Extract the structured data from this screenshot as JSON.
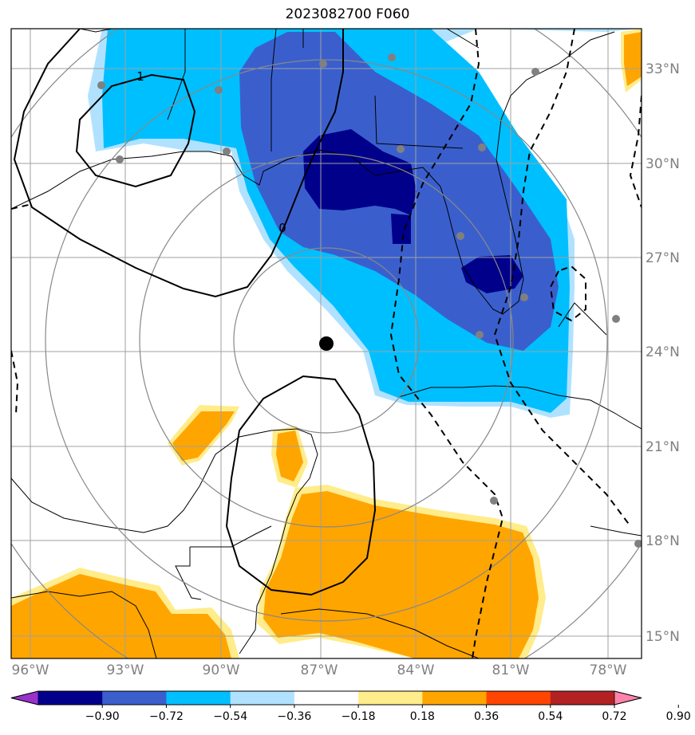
{
  "title": "2023082700 F060",
  "map": {
    "lon_ticks": [
      "96°W",
      "93°W",
      "90°W",
      "87°W",
      "84°W",
      "81°W",
      "78°W"
    ],
    "lat_ticks": [
      "33°N",
      "30°N",
      "27°N",
      "24°N",
      "21°N",
      "18°N",
      "15°N"
    ],
    "contour_labels": [
      "1",
      "0"
    ],
    "grid_color": "#a0a0a0",
    "range_ring_color": "#888888",
    "center_marker": "black-dot",
    "station_marker_color": "#808080"
  },
  "colorbar": {
    "tick_labels": [
      "−0.90",
      "−0.72",
      "−0.54",
      "−0.36",
      "−0.18",
      "0.18",
      "0.36",
      "0.54",
      "0.72",
      "0.90"
    ],
    "colors": [
      "#9932cc",
      "#00008b",
      "#3a5fcd",
      "#00bfff",
      "#b0e2ff",
      "#ffffff",
      "#ffec8b",
      "#ffa500",
      "#ff4500",
      "#b22222",
      "#ff82ab"
    ]
  },
  "chart_data": {
    "type": "heatmap",
    "title": "2023082700 F060",
    "levels": [
      -0.9,
      -0.72,
      -0.54,
      -0.36,
      -0.18,
      0.18,
      0.36,
      0.54,
      0.72,
      0.9
    ],
    "extent_lon": [
      -96.0,
      -76.5
    ],
    "extent_lat": [
      14.5,
      34.0
    ]
  }
}
